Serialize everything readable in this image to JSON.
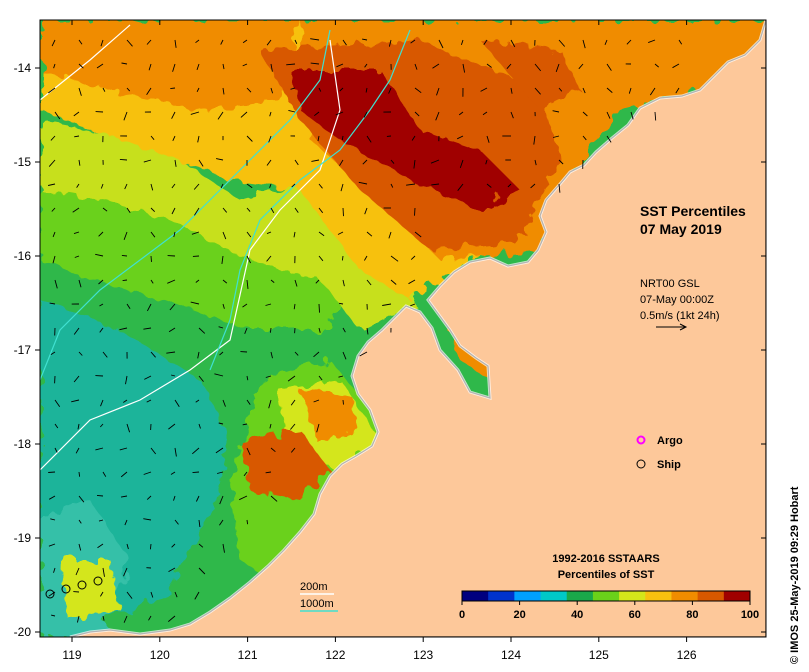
{
  "title": {
    "line1": "SST Percentiles",
    "line2": "07 May 2019"
  },
  "current_info": {
    "line1": "NRT00 GSL",
    "line2": "07-May 00:00Z",
    "line3": "0.5m/s (1kt 24h)"
  },
  "legend": {
    "argo": {
      "label": "Argo",
      "color": "#ff00ff"
    },
    "ship": {
      "label": "Ship",
      "color": "#000000"
    }
  },
  "isobaths": [
    {
      "label": "200m",
      "color": "#ffffff"
    },
    {
      "label": "1000m",
      "color": "#40e0d0"
    }
  ],
  "colorbar": {
    "title1": "1992-2016 SSTAARS",
    "title2": "Percentiles of SST",
    "ticks": [
      "0",
      "20",
      "40",
      "60",
      "80",
      "100"
    ],
    "colors": [
      "#00007f",
      "#0033cc",
      "#00a0ff",
      "#00c8c8",
      "#1aa84a",
      "#6ad11a",
      "#d4e61a",
      "#f7c10f",
      "#f08c00",
      "#d85800",
      "#a00000"
    ]
  },
  "x_axis": {
    "ticks": [
      "119",
      "120",
      "121",
      "122",
      "123",
      "124",
      "125",
      "126"
    ]
  },
  "y_axis": {
    "ticks": [
      "-14",
      "-15",
      "-16",
      "-17",
      "-18",
      "-19",
      "-20"
    ]
  },
  "land_color": "#fdc89a",
  "credit": "© IMOS 25-May-2019 09:29 Hobart"
}
